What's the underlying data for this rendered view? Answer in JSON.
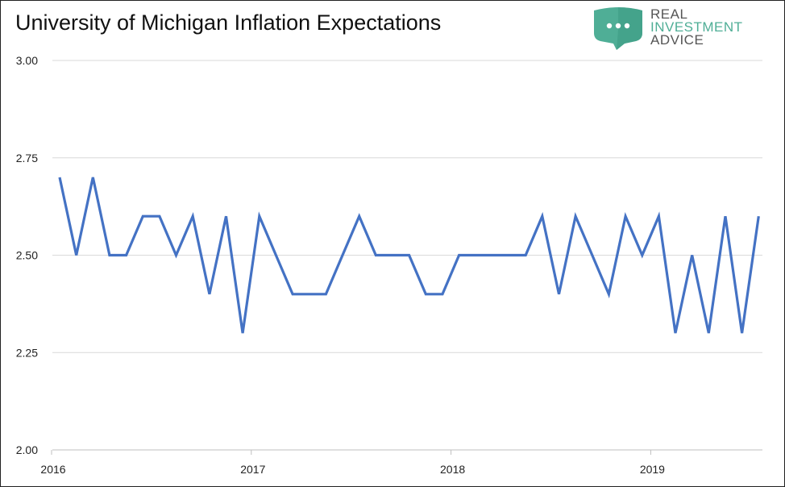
{
  "title": "University of Michigan Inflation Expectations",
  "logo": {
    "line1": "REAL",
    "line2": "INVESTMENT",
    "line3": "ADVICE",
    "colors": {
      "green": "#4fae96",
      "gray": "#555555"
    }
  },
  "chart_data": {
    "type": "line",
    "title": "University of Michigan Inflation Expectations",
    "xlabel": "",
    "ylabel": "",
    "ylim": [
      2.0,
      3.0
    ],
    "yticks": [
      "3.00",
      "2.75",
      "2.50",
      "2.25",
      "2.00"
    ],
    "ytick_values": [
      3.0,
      2.75,
      2.5,
      2.25,
      2.0
    ],
    "xticks": [
      "2016",
      "2017",
      "2018",
      "2019"
    ],
    "xtick_values": [
      "2016-01",
      "2017-01",
      "2018-01",
      "2019-01"
    ],
    "grid": true,
    "series": [
      {
        "color": "#4472c4",
        "x": [
          "2016-01",
          "2016-02",
          "2016-03",
          "2016-04",
          "2016-05",
          "2016-06",
          "2016-07",
          "2016-08",
          "2016-09",
          "2016-10",
          "2016-11",
          "2016-12",
          "2017-01",
          "2017-02",
          "2017-03",
          "2017-04",
          "2017-05",
          "2017-06",
          "2017-07",
          "2017-08",
          "2017-09",
          "2017-10",
          "2017-11",
          "2017-12",
          "2018-01",
          "2018-02",
          "2018-03",
          "2018-04",
          "2018-05",
          "2018-06",
          "2018-07",
          "2018-08",
          "2018-09",
          "2018-10",
          "2018-11",
          "2018-12",
          "2019-01",
          "2019-02",
          "2019-03",
          "2019-04",
          "2019-05",
          "2019-06",
          "2019-07"
        ],
        "values": [
          2.7,
          2.5,
          2.7,
          2.5,
          2.5,
          2.6,
          2.6,
          2.5,
          2.6,
          2.4,
          2.6,
          2.3,
          2.6,
          2.5,
          2.4,
          2.4,
          2.4,
          2.5,
          2.6,
          2.5,
          2.5,
          2.5,
          2.4,
          2.4,
          2.5,
          2.5,
          2.5,
          2.5,
          2.5,
          2.6,
          2.4,
          2.6,
          2.5,
          2.4,
          2.6,
          2.5,
          2.6,
          2.3,
          2.5,
          2.3,
          2.6,
          2.3,
          2.6
        ]
      }
    ]
  }
}
